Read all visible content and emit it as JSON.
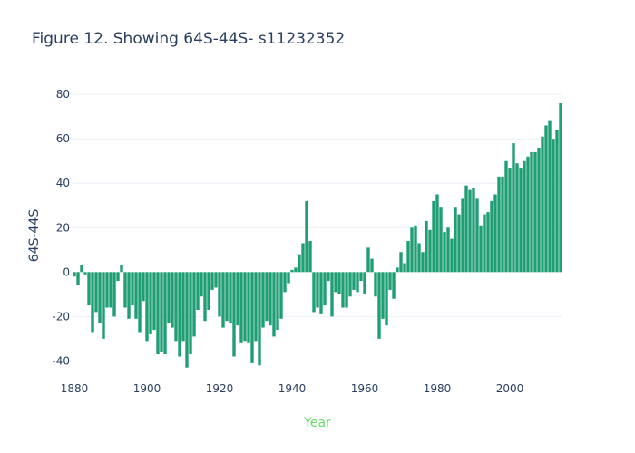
{
  "chart_data": {
    "type": "bar",
    "title": "Figure 12. Showing 64S-44S- s11232352",
    "xlabel": "Year",
    "ylabel": "64S-44S",
    "xlim": [
      1879.5,
      2014.5
    ],
    "ylim": [
      -48,
      87
    ],
    "x_ticks": [
      1880,
      1900,
      1920,
      1940,
      1960,
      1980,
      2000
    ],
    "y_ticks": [
      -40,
      -20,
      0,
      20,
      40,
      60,
      80
    ],
    "grid": true,
    "bar_color": "#1f9e74",
    "xlabel_color": "#66dd66",
    "text_color": "#2a3f5f",
    "x": [
      1880,
      1881,
      1882,
      1883,
      1884,
      1885,
      1886,
      1887,
      1888,
      1889,
      1890,
      1891,
      1892,
      1893,
      1894,
      1895,
      1896,
      1897,
      1898,
      1899,
      1900,
      1901,
      1902,
      1903,
      1904,
      1905,
      1906,
      1907,
      1908,
      1909,
      1910,
      1911,
      1912,
      1913,
      1914,
      1915,
      1916,
      1917,
      1918,
      1919,
      1920,
      1921,
      1922,
      1923,
      1924,
      1925,
      1926,
      1927,
      1928,
      1929,
      1930,
      1931,
      1932,
      1933,
      1934,
      1935,
      1936,
      1937,
      1938,
      1939,
      1940,
      1941,
      1942,
      1943,
      1944,
      1945,
      1946,
      1947,
      1948,
      1949,
      1950,
      1951,
      1952,
      1953,
      1954,
      1955,
      1956,
      1957,
      1958,
      1959,
      1960,
      1961,
      1962,
      1963,
      1964,
      1965,
      1966,
      1967,
      1968,
      1969,
      1970,
      1971,
      1972,
      1973,
      1974,
      1975,
      1976,
      1977,
      1978,
      1979,
      1980,
      1981,
      1982,
      1983,
      1984,
      1985,
      1986,
      1987,
      1988,
      1989,
      1990,
      1991,
      1992,
      1993,
      1994,
      1995,
      1996,
      1997,
      1998,
      1999,
      2000,
      2001,
      2002,
      2003,
      2004,
      2005,
      2006,
      2007,
      2008,
      2009,
      2010,
      2011,
      2012,
      2013,
      2014
    ],
    "values": [
      -2,
      -6,
      3,
      -1,
      -15,
      -27,
      -18,
      -23,
      -30,
      -16,
      -16,
      -20,
      -4,
      3,
      -16,
      -21,
      -15,
      -21,
      -27,
      -13,
      -31,
      -28,
      -26,
      -37,
      -36,
      -37,
      -23,
      -25,
      -31,
      -38,
      -31,
      -43,
      -37,
      -29,
      -17,
      -11,
      -22,
      -17,
      -8,
      -7,
      -20,
      -25,
      -22,
      -23,
      -38,
      -24,
      -32,
      -31,
      -32,
      -41,
      -31,
      -42,
      -25,
      -22,
      -24,
      -29,
      -26,
      -21,
      -9,
      -5,
      1,
      2,
      8,
      13,
      32,
      14,
      -18,
      -16,
      -19,
      -15,
      -4,
      -20,
      -9,
      -10,
      -16,
      -16,
      -11,
      -8,
      -9,
      -4,
      -10,
      11,
      6,
      -11,
      -30,
      -21,
      -24,
      -8,
      -12,
      2,
      9,
      4,
      14,
      20,
      21,
      13,
      9,
      23,
      19,
      32,
      35,
      29,
      18,
      20,
      15,
      29,
      26,
      33,
      39,
      37,
      38,
      33,
      21,
      26,
      27,
      32,
      35,
      43,
      43,
      50,
      47,
      58,
      49,
      47,
      50,
      52,
      54,
      54,
      56,
      61,
      66,
      68,
      60,
      64,
      76
    ]
  }
}
